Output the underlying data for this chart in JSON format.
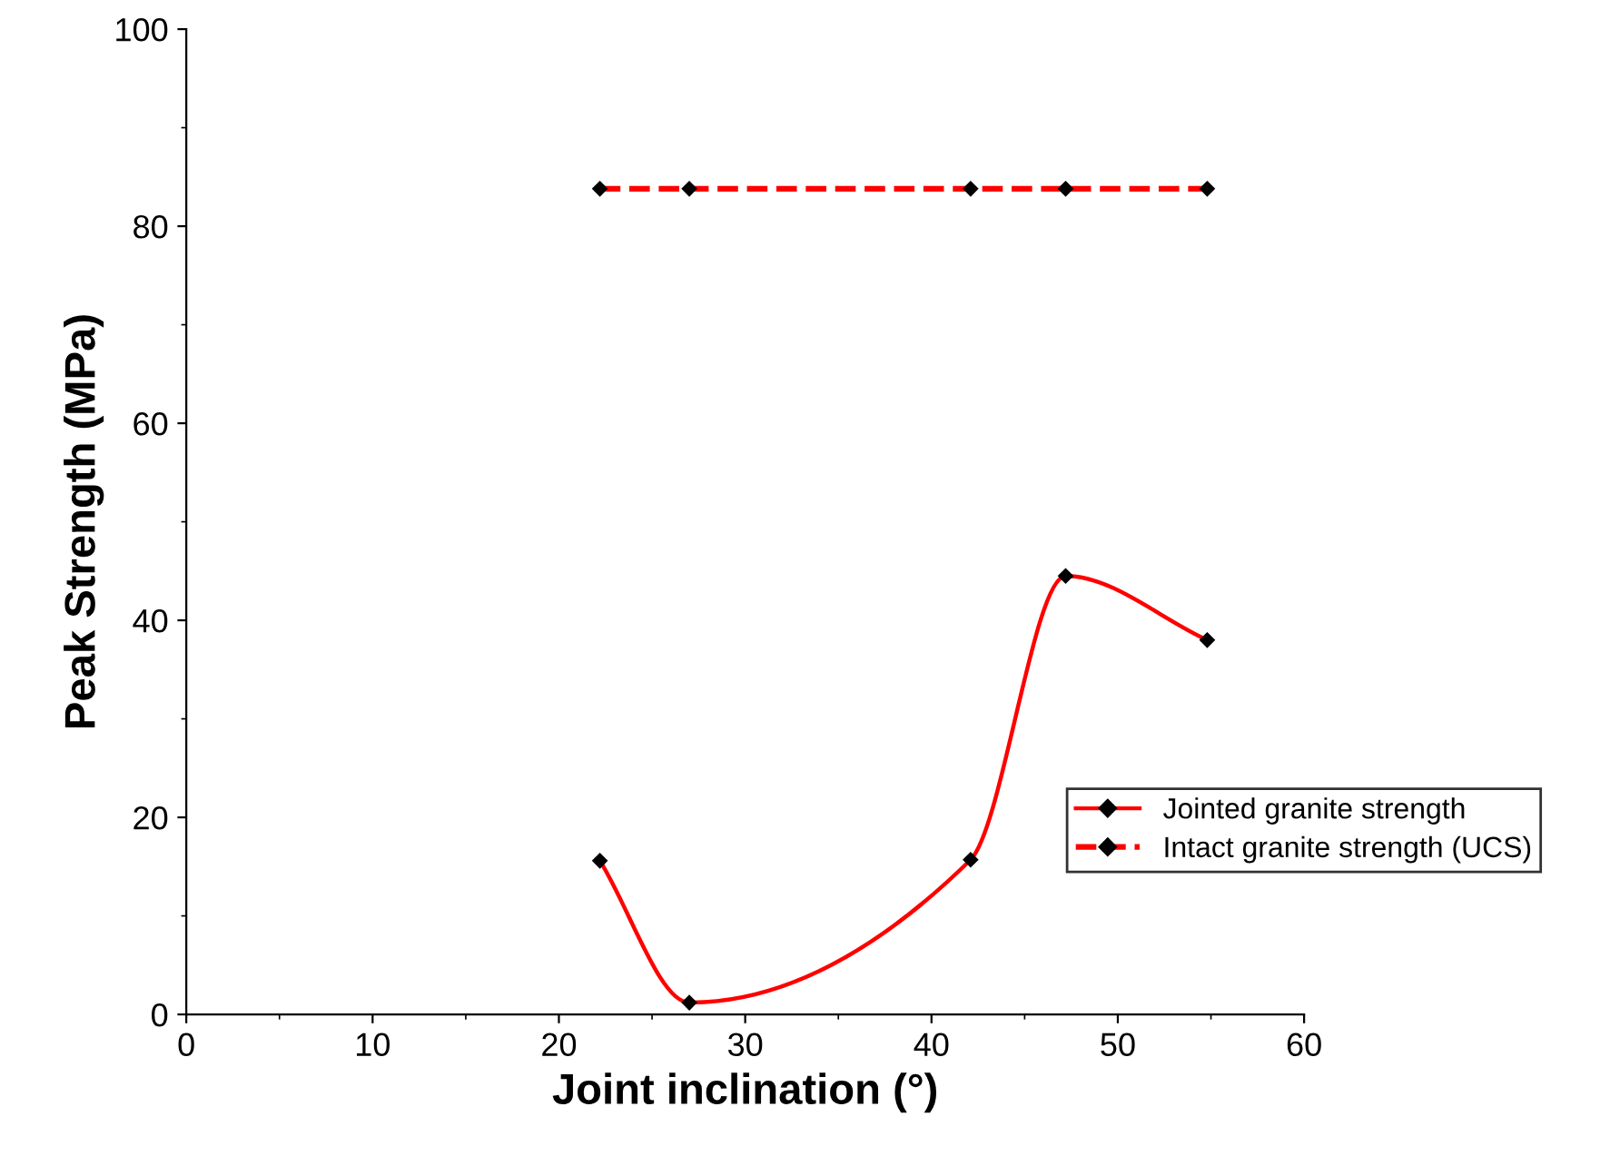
{
  "chart_data": {
    "type": "line",
    "xlabel": "Joint inclination (°)",
    "ylabel": "Peak Strength (MPa)",
    "x": [
      22.2,
      27.0,
      42.1,
      47.2,
      54.8
    ],
    "series": [
      {
        "name": "Jointed granite strength",
        "color": "#ff0000",
        "values": [
          15.6,
          1.2,
          15.7,
          44.5,
          38.0
        ],
        "line_style": "solid"
      },
      {
        "name": "Intact granite strength (UCS)",
        "color": "#ff0000",
        "values": [
          83.8,
          83.8,
          83.8,
          83.8,
          83.8
        ],
        "line_style": "dashed"
      }
    ],
    "xlim": [
      0,
      60
    ],
    "xticks": [
      0,
      10,
      20,
      30,
      40,
      50,
      60
    ],
    "ylim": [
      0,
      100
    ],
    "yticks": [
      0,
      20,
      40,
      60,
      80,
      100
    ],
    "marker": "diamond",
    "grid": false,
    "legend": "bottom right"
  }
}
